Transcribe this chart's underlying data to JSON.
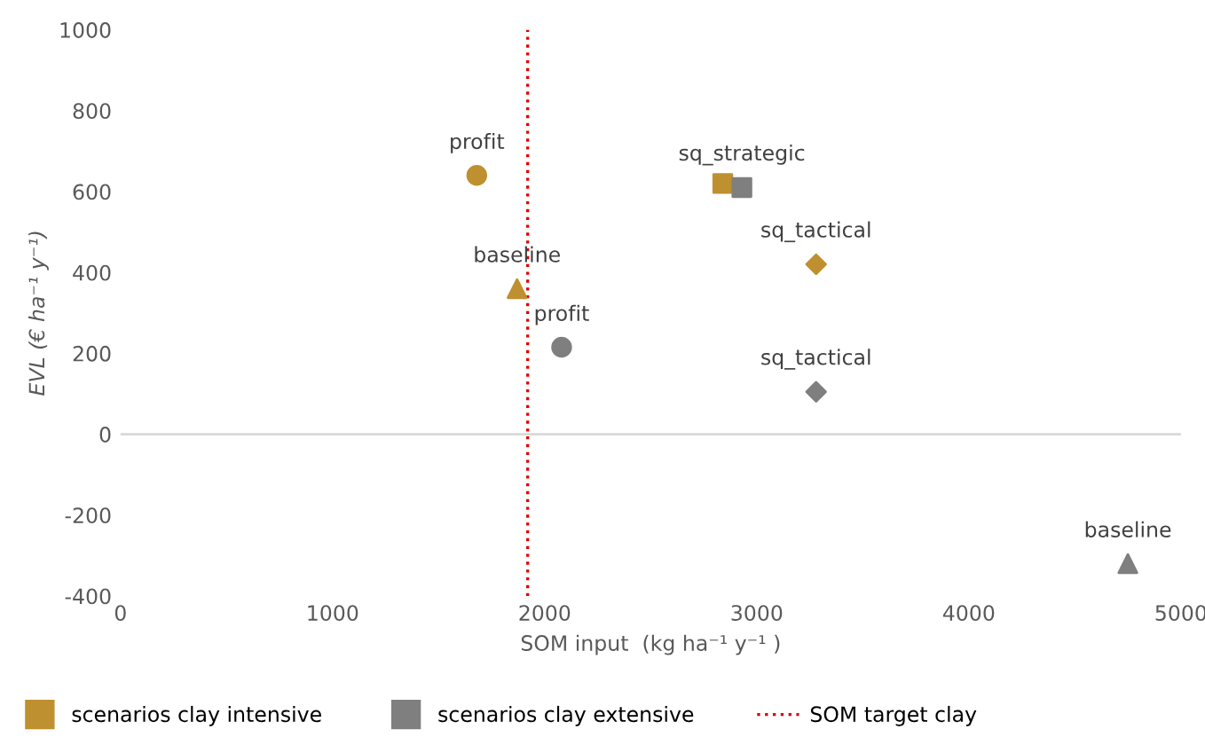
{
  "chart_data": {
    "type": "scatter",
    "xlabel": "SOM input  (kg ha⁻¹ y⁻¹ )",
    "ylabel": "EVL (€ ha⁻¹ y⁻¹)",
    "xlim": [
      0,
      5000
    ],
    "xticks": [
      0,
      1000,
      2000,
      3000,
      4000,
      5000
    ],
    "ylim": [
      -400,
      1000
    ],
    "yticks": [
      -400,
      -200,
      0,
      200,
      400,
      600,
      800,
      1000
    ],
    "grid": false,
    "legend": "bottom",
    "series": [
      {
        "name": "scenarios clay intensive",
        "color": "#bf9030",
        "marker": [
          "circle",
          "triangle",
          "square",
          "diamond"
        ],
        "x": [
          1680,
          1870,
          2840,
          3280
        ],
        "values": [
          640,
          360,
          620,
          420
        ],
        "value_labels": [
          "profit",
          "baseline",
          null,
          "sq_tactical"
        ]
      },
      {
        "name": "scenarios clay extensive",
        "color": "#7f7f7f",
        "marker": [
          "circle",
          "square",
          "diamond",
          "triangle"
        ],
        "x": [
          2080,
          2930,
          3280,
          4750
        ],
        "values": [
          215,
          610,
          105,
          -320
        ],
        "value_labels": [
          "profit",
          "sq_strategic",
          "sq_tactical",
          "baseline"
        ]
      }
    ],
    "ref_lines": [
      {
        "axis": "x",
        "value": 1920,
        "label": "SOM target clay",
        "color": "#e00000",
        "line_style": "dotted"
      },
      {
        "axis": "y",
        "value": 0,
        "color": "#d9d9d9",
        "line_style": "solid"
      }
    ]
  }
}
